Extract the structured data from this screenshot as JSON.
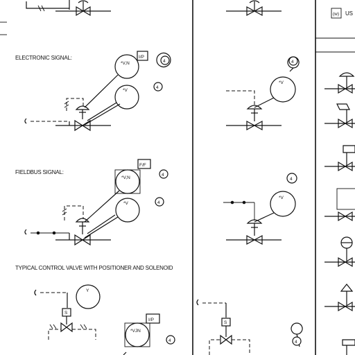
{
  "labels": {
    "electronic_signal": "ELECTRONIC SIGNAL:",
    "fieldbus_signal": "FIELDBUS SIGNAL:",
    "typical_control_valve": "TYPICAL CONTROL VALVE WITH POSITIONER AND SOLENOID"
  },
  "legend": {
    "box_symbol": "(w)",
    "text": "US"
  },
  "tags": {
    "ip": "I/P",
    "ff": "F/F",
    "vn": "*V,N",
    "v": "*V",
    "y": "Y",
    "vjn": "*VJN",
    "ip2": "I/P",
    "s": "S"
  },
  "bubbles": {
    "note": "4"
  }
}
